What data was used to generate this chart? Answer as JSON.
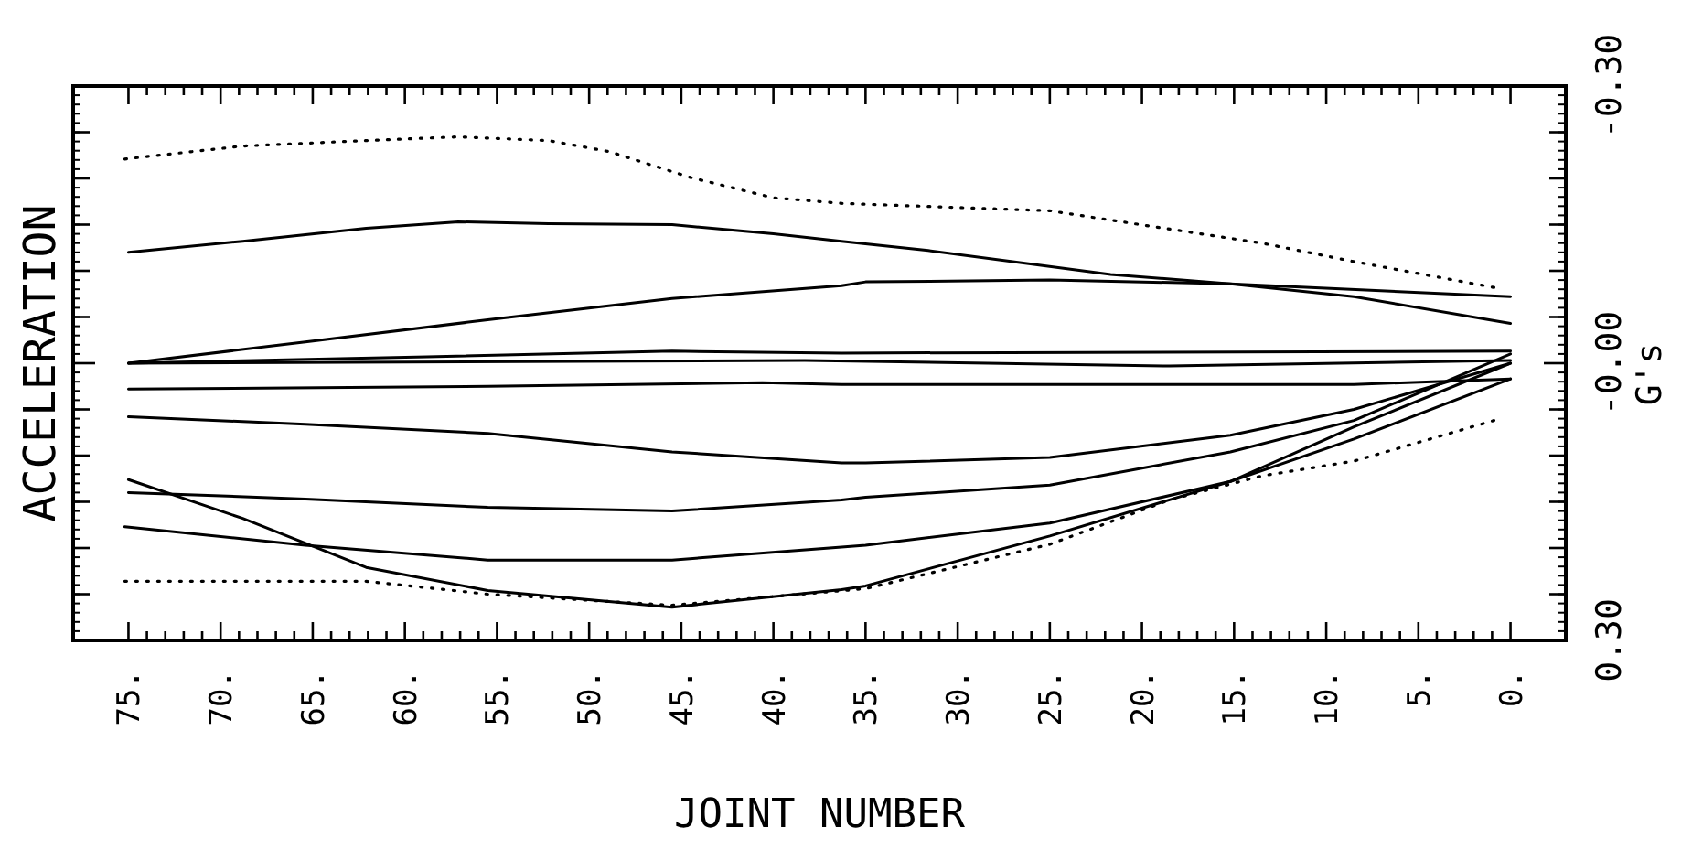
{
  "chart_data": {
    "type": "line",
    "xlabel": "JOINT NUMBER",
    "ylabel": "ACCELERATION",
    "y2label": "G's",
    "xlim": [
      78,
      -3
    ],
    "ylim": [
      0.3,
      -0.3
    ],
    "xticks": [
      {
        "value": 75,
        "label": "75."
      },
      {
        "value": 74,
        "label": null
      },
      {
        "value": 73,
        "label": null
      },
      {
        "value": 72,
        "label": null
      },
      {
        "value": 71,
        "label": null
      },
      {
        "value": 70,
        "label": "70."
      },
      {
        "value": 69,
        "label": null
      },
      {
        "value": 68,
        "label": null
      },
      {
        "value": 67,
        "label": null
      },
      {
        "value": 66,
        "label": null
      },
      {
        "value": 65,
        "label": "65."
      },
      {
        "value": 64,
        "label": null
      },
      {
        "value": 63,
        "label": null
      },
      {
        "value": 62,
        "label": null
      },
      {
        "value": 61,
        "label": null
      },
      {
        "value": 60,
        "label": "60."
      },
      {
        "value": 59,
        "label": null
      },
      {
        "value": 58,
        "label": null
      },
      {
        "value": 57,
        "label": null
      },
      {
        "value": 56,
        "label": null
      },
      {
        "value": 55,
        "label": "55."
      },
      {
        "value": 54,
        "label": null
      },
      {
        "value": 53,
        "label": null
      },
      {
        "value": 52,
        "label": null
      },
      {
        "value": 51,
        "label": null
      },
      {
        "value": 50,
        "label": "50."
      },
      {
        "value": 49,
        "label": null
      },
      {
        "value": 48,
        "label": null
      },
      {
        "value": 47,
        "label": null
      },
      {
        "value": 46,
        "label": null
      },
      {
        "value": 45,
        "label": "45."
      },
      {
        "value": 44,
        "label": null
      },
      {
        "value": 43,
        "label": null
      },
      {
        "value": 42,
        "label": null
      },
      {
        "value": 41,
        "label": null
      },
      {
        "value": 40,
        "label": "40."
      },
      {
        "value": 39,
        "label": null
      },
      {
        "value": 38,
        "label": null
      },
      {
        "value": 37,
        "label": null
      },
      {
        "value": 36,
        "label": null
      },
      {
        "value": 35,
        "label": "35."
      },
      {
        "value": 34,
        "label": null
      },
      {
        "value": 33,
        "label": null
      },
      {
        "value": 32,
        "label": null
      },
      {
        "value": 31,
        "label": null
      },
      {
        "value": 30,
        "label": "30."
      },
      {
        "value": 29,
        "label": null
      },
      {
        "value": 28,
        "label": null
      },
      {
        "value": 27,
        "label": null
      },
      {
        "value": 26,
        "label": null
      },
      {
        "value": 25,
        "label": "25."
      },
      {
        "value": 24,
        "label": null
      },
      {
        "value": 23,
        "label": null
      },
      {
        "value": 22,
        "label": null
      },
      {
        "value": 21,
        "label": null
      },
      {
        "value": 20,
        "label": "20."
      },
      {
        "value": 19,
        "label": null
      },
      {
        "value": 18,
        "label": null
      },
      {
        "value": 17,
        "label": null
      },
      {
        "value": 16,
        "label": null
      },
      {
        "value": 15,
        "label": "15."
      },
      {
        "value": 14,
        "label": null
      },
      {
        "value": 13,
        "label": null
      },
      {
        "value": 12,
        "label": null
      },
      {
        "value": 11,
        "label": null
      },
      {
        "value": 10,
        "label": "10."
      },
      {
        "value": 9,
        "label": null
      },
      {
        "value": 8,
        "label": null
      },
      {
        "value": 7,
        "label": null
      },
      {
        "value": 6,
        "label": null
      },
      {
        "value": 5,
        "label": "5."
      },
      {
        "value": 4,
        "label": null
      },
      {
        "value": 3,
        "label": null
      },
      {
        "value": 2,
        "label": null
      },
      {
        "value": 1,
        "label": null
      },
      {
        "value": 0,
        "label": "0."
      }
    ],
    "yticks": [
      {
        "value": -0.3,
        "label": "-0.30"
      },
      {
        "value": -0.25,
        "label": null
      },
      {
        "value": -0.2,
        "label": null
      },
      {
        "value": -0.15,
        "label": null
      },
      {
        "value": -0.1,
        "label": null
      },
      {
        "value": -0.05,
        "label": null
      },
      {
        "value": 0,
        "label": "-0.00"
      },
      {
        "value": 0.05,
        "label": null
      },
      {
        "value": 0.1,
        "label": null
      },
      {
        "value": 0.15,
        "label": null
      },
      {
        "value": 0.2,
        "label": null
      },
      {
        "value": 0.25,
        "label": null
      },
      {
        "value": 0.3,
        "label": "0.30"
      }
    ],
    "tick_labels": "xy",
    "grid": false,
    "marker": "none",
    "series": [
      {
        "color": "#000000",
        "line_style": "dotted",
        "x": [
          75.2,
          68.8,
          62.1,
          57.1,
          52.2,
          48.9,
          44.5,
          40,
          36.3,
          25,
          20.1,
          13.5,
          8.5,
          0.9
        ],
        "values": [
          -0.221,
          -0.235,
          -0.241,
          -0.245,
          -0.241,
          -0.229,
          -0.201,
          -0.179,
          -0.173,
          -0.165,
          -0.15,
          -0.13,
          -0.11,
          -0.082
        ]
      },
      {
        "color": "#000000",
        "line_style": "solid",
        "x": [
          75,
          68.8,
          62.1,
          57.1,
          52.2,
          45.5,
          40,
          36.3,
          31.6,
          21.7,
          15.2,
          8.5,
          0
        ],
        "values": [
          -0.12,
          -0.132,
          -0.146,
          -0.153,
          -0.151,
          -0.15,
          -0.14,
          -0.132,
          -0.122,
          -0.096,
          -0.086,
          -0.072,
          -0.043
        ]
      },
      {
        "color": "#000000",
        "line_style": "solid",
        "x": [
          75,
          65.4,
          55.5,
          45.5,
          36.3,
          35,
          25,
          15.2,
          0
        ],
        "values": [
          0,
          -0.023,
          -0.047,
          -0.07,
          -0.084,
          -0.088,
          -0.09,
          -0.086,
          -0.072
        ]
      },
      {
        "color": "#000000",
        "line_style": "solid",
        "x": [
          75,
          58.8,
          45.5,
          36.3,
          0
        ],
        "values": [
          0,
          -0.007,
          -0.013,
          -0.011,
          -0.013
        ]
      },
      {
        "color": "#000000",
        "line_style": "solid",
        "x": [
          75,
          38.3,
          18.5,
          0
        ],
        "values": [
          0,
          -0.003,
          0.003,
          -0.003
        ]
      },
      {
        "color": "#000000",
        "line_style": "solid",
        "x": [
          75,
          55.5,
          40.6,
          36.3,
          25,
          8.5,
          0
        ],
        "values": [
          0.028,
          0.025,
          0.021,
          0.023,
          0.023,
          0.023,
          0.017
        ]
      },
      {
        "color": "#000000",
        "line_style": "solid",
        "x": [
          75,
          65.4,
          55.5,
          45.5,
          36.3,
          35,
          25,
          15.2,
          8.5,
          0
        ],
        "values": [
          0.058,
          0.066,
          0.076,
          0.096,
          0.108,
          0.108,
          0.102,
          0.078,
          0.05,
          0
        ]
      },
      {
        "color": "#000000",
        "line_style": "solid",
        "x": [
          75,
          65.4,
          55.5,
          45.5,
          36.3,
          35,
          25,
          15.2,
          8.5,
          0
        ],
        "values": [
          0.14,
          0.147,
          0.156,
          0.16,
          0.148,
          0.145,
          0.132,
          0.096,
          0.062,
          -0.01
        ]
      },
      {
        "color": "#000000",
        "line_style": "solid",
        "x": [
          75.2,
          65.4,
          55.5,
          45.5,
          36.3,
          35,
          25,
          15.2,
          8.5,
          0
        ],
        "values": [
          0.177,
          0.197,
          0.213,
          0.213,
          0.199,
          0.197,
          0.173,
          0.128,
          0.082,
          0.017
        ]
      },
      {
        "color": "#000000",
        "line_style": "solid",
        "x": [
          75,
          68.8,
          62.1,
          55.5,
          45.5,
          36.3,
          35,
          25,
          15.2,
          8.5,
          0
        ],
        "values": [
          0.126,
          0.168,
          0.221,
          0.246,
          0.264,
          0.245,
          0.241,
          0.187,
          0.128,
          0.069,
          0
        ]
      },
      {
        "color": "#000000",
        "line_style": "dotted",
        "x": [
          75.2,
          62.1,
          55.5,
          45.5,
          35,
          25,
          18.5,
          13.5,
          8.5,
          0.9
        ],
        "values": [
          0.236,
          0.236,
          0.25,
          0.262,
          0.244,
          0.196,
          0.148,
          0.122,
          0.106,
          0.062
        ]
      }
    ]
  }
}
